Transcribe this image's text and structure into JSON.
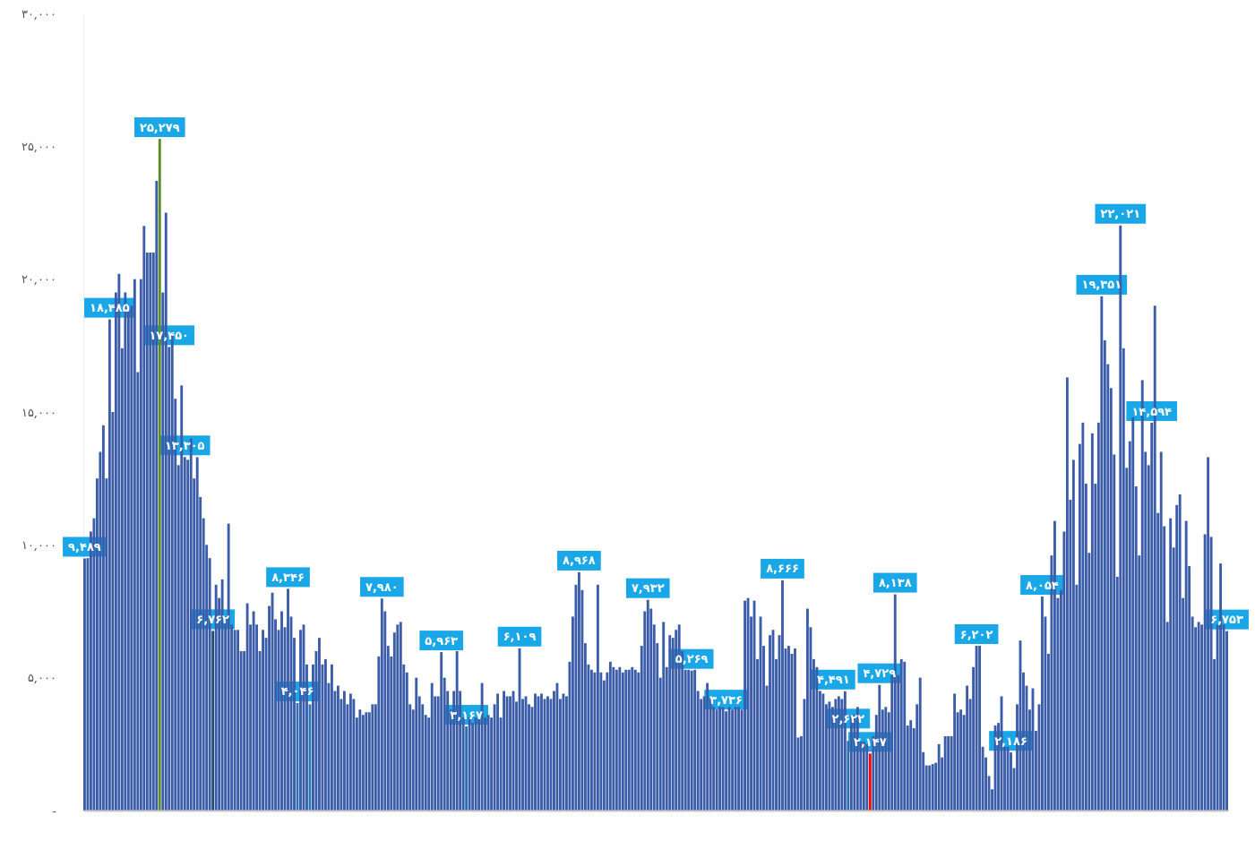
{
  "chart_data": {
    "type": "bar",
    "categories": [
      null,
      null,
      null,
      null,
      null,
      null,
      null,
      null,
      null,
      null,
      null,
      null,
      null,
      null,
      null,
      null,
      null,
      null,
      null,
      null,
      null,
      null,
      null,
      null,
      null,
      null,
      null,
      null,
      null,
      null,
      null,
      null,
      null,
      null,
      null,
      null,
      null,
      null,
      null,
      null,
      null,
      null,
      null,
      null,
      null,
      null,
      null,
      null,
      null,
      null,
      null,
      null,
      null,
      null,
      null,
      null,
      null,
      null,
      null,
      null,
      null,
      null,
      null,
      null,
      null,
      null,
      null,
      null,
      null,
      null,
      null,
      null,
      null,
      null,
      null,
      null,
      null,
      null,
      null,
      null,
      null,
      null,
      null,
      null,
      null,
      null,
      null,
      null,
      null,
      null,
      null,
      null,
      null,
      null,
      null,
      null,
      null,
      null,
      null,
      null,
      null,
      null,
      null,
      null,
      null,
      null,
      null,
      null,
      null,
      null,
      null,
      null,
      null,
      null,
      null,
      null,
      null,
      null,
      null,
      null,
      null,
      null,
      null,
      null,
      null,
      null,
      null,
      null,
      null,
      null,
      null,
      null,
      null,
      null,
      null,
      null,
      null,
      null,
      null,
      null,
      null,
      null,
      null,
      null,
      null,
      null,
      null,
      null,
      null,
      null,
      null,
      null,
      null,
      null,
      null,
      null,
      null,
      null,
      null,
      null,
      null,
      null,
      null,
      null,
      null,
      null,
      null,
      null,
      null,
      null,
      null,
      null,
      null,
      null,
      null,
      null,
      null,
      null,
      null,
      null,
      null,
      null,
      null,
      null,
      null,
      null,
      null,
      null,
      null,
      null,
      null,
      null,
      null,
      null,
      null,
      null,
      null,
      null,
      null,
      null,
      null,
      null,
      null,
      null,
      null,
      null,
      null,
      null,
      null,
      null,
      null,
      null,
      null,
      null,
      null,
      null,
      null,
      null,
      null,
      null,
      null,
      null,
      null,
      null,
      null,
      null,
      null,
      null,
      null,
      null,
      null,
      null,
      null,
      null,
      null,
      null,
      null,
      null,
      null,
      null,
      null,
      null,
      null,
      null,
      null,
      null,
      null,
      null,
      null,
      null,
      null,
      null,
      null,
      null,
      null,
      null,
      null,
      null,
      null,
      null,
      null,
      null,
      null,
      null,
      null,
      null,
      null,
      null,
      null,
      null,
      null,
      null,
      null,
      null,
      null,
      null,
      null,
      null,
      null,
      null,
      null,
      null,
      null,
      null,
      null,
      null,
      null,
      null,
      null,
      null,
      null,
      null,
      null,
      null,
      null,
      null,
      null,
      null,
      null,
      null,
      null,
      null,
      null,
      null,
      null,
      null,
      null,
      null,
      null,
      null,
      null,
      null,
      null,
      null,
      null,
      null,
      null,
      null,
      null,
      null,
      null,
      null,
      null,
      null,
      null,
      null,
      null,
      null,
      null,
      null,
      null,
      null,
      null,
      null,
      null,
      null,
      null,
      null,
      null,
      null,
      null,
      null,
      null,
      null,
      null,
      null,
      null,
      null,
      null,
      null,
      null,
      null,
      null,
      null,
      null,
      null,
      null,
      null,
      null,
      null,
      null,
      null,
      null,
      null,
      null,
      null
    ],
    "values": [
      9489,
      9500,
      10500,
      11000,
      12500,
      13500,
      14500,
      12500,
      18485,
      15000,
      19500,
      20200,
      17400,
      19500,
      18900,
      19000,
      20000,
      16500,
      20000,
      22000,
      21000,
      21000,
      21000,
      23700,
      25279,
      19500,
      22500,
      17450,
      18000,
      15500,
      13000,
      16000,
      13305,
      13200,
      14000,
      12500,
      13300,
      11800,
      11000,
      10000,
      9500,
      6762,
      8500,
      8000,
      8700,
      7300,
      10800,
      7000,
      6800,
      6800,
      6000,
      6000,
      7800,
      7000,
      7500,
      7000,
      6000,
      6800,
      6500,
      7700,
      8200,
      7200,
      6800,
      7500,
      6900,
      8346,
      7300,
      6500,
      4046,
      6800,
      7000,
      5500,
      4000,
      5500,
      6000,
      6500,
      5500,
      5700,
      4800,
      5500,
      4500,
      4700,
      4200,
      4500,
      4000,
      4400,
      4200,
      3500,
      3800,
      3600,
      3700,
      3700,
      4000,
      4000,
      5800,
      7980,
      7500,
      6200,
      5800,
      6700,
      7000,
      7100,
      5500,
      5200,
      4000,
      3800,
      5000,
      4300,
      4000,
      3600,
      3500,
      4800,
      4300,
      4300,
      5963,
      5000,
      4500,
      3800,
      4500,
      6000,
      4500,
      3500,
      3167,
      3500,
      3300,
      3500,
      3500,
      4800,
      3500,
      3600,
      3500,
      4000,
      4400,
      3500,
      4500,
      4300,
      4300,
      4500,
      4100,
      6109,
      4200,
      4300,
      4000,
      3900,
      4400,
      4300,
      4400,
      4200,
      4300,
      4200,
      4500,
      4800,
      4200,
      4400,
      4300,
      5600,
      7300,
      8500,
      8968,
      8300,
      6300,
      5500,
      5300,
      5200,
      8500,
      5200,
      4900,
      5200,
      5600,
      5400,
      5300,
      5400,
      5200,
      5300,
      5300,
      5400,
      5300,
      5200,
      6200,
      7500,
      7932,
      7600,
      7000,
      6300,
      5000,
      7100,
      5400,
      6600,
      6500,
      6800,
      7000,
      6000,
      5300,
      5300,
      5269,
      5300,
      4500,
      4200,
      4300,
      4800,
      4200,
      3900,
      3800,
      3900,
      3900,
      3736,
      3900,
      3800,
      3900,
      3900,
      3800,
      7900,
      8000,
      7300,
      7900,
      5700,
      7300,
      6200,
      4700,
      6600,
      6800,
      5700,
      6600,
      8666,
      6100,
      6200,
      5900,
      6100,
      2750,
      2800,
      4200,
      7600,
      6900,
      5700,
      5400,
      4500,
      4400,
      4000,
      4100,
      3900,
      4200,
      4300,
      4200,
      4491,
      2622,
      3600,
      3600,
      3900,
      2600,
      2600,
      2500,
      2147,
      2800,
      3600,
      4729,
      3800,
      3900,
      3700,
      5100,
      8138,
      5100,
      5700,
      5600,
      3200,
      3400,
      3100,
      4000,
      5000,
      2200,
      1700,
      1700,
      1750,
      1800,
      2500,
      2000,
      2800,
      2800,
      2800,
      4400,
      3700,
      3800,
      3600,
      4700,
      4200,
      5400,
      6202,
      6200,
      2400,
      2000,
      1300,
      800,
      3200,
      3300,
      4300,
      2400,
      2400,
      2186,
      1600,
      4000,
      6400,
      5200,
      4700,
      3800,
      4600,
      3000,
      4000,
      8054,
      7300,
      5900,
      9600,
      10900,
      8000,
      8300,
      10500,
      16300,
      11700,
      13200,
      8500,
      13800,
      14600,
      12300,
      9700,
      14200,
      12300,
      14600,
      19351,
      17700,
      16800,
      15900,
      13400,
      8800,
      22021,
      17400,
      12900,
      13900,
      14800,
      12200,
      9600,
      16200,
      13500,
      13000,
      14594,
      19000,
      11200,
      13500,
      10700,
      7100,
      11000,
      9900,
      11500,
      11900,
      8000,
      10900,
      9200,
      7300,
      6900,
      7100,
      7000,
      10400,
      13300,
      10300,
      5700,
      7000,
      9300,
      7000,
      6753
    ],
    "value_labels": [
      "۹,۴۸۹",
      null,
      null,
      null,
      null,
      null,
      null,
      null,
      "۱۸,۴۸۵",
      null,
      null,
      null,
      null,
      null,
      null,
      null,
      null,
      null,
      null,
      null,
      null,
      null,
      null,
      null,
      "۲۵,۲۷۹",
      null,
      null,
      "۱۷,۴۵۰",
      null,
      null,
      null,
      null,
      "۱۳,۳۰۵",
      null,
      null,
      null,
      null,
      null,
      null,
      null,
      null,
      "۶,۷۶۲",
      null,
      null,
      null,
      null,
      null,
      null,
      null,
      null,
      null,
      null,
      null,
      null,
      null,
      null,
      null,
      null,
      null,
      null,
      null,
      null,
      null,
      null,
      null,
      "۸,۳۴۶",
      null,
      null,
      "۴,۰۴۶",
      null,
      null,
      null,
      null,
      null,
      null,
      null,
      null,
      null,
      null,
      null,
      null,
      null,
      null,
      null,
      null,
      null,
      null,
      null,
      null,
      null,
      null,
      null,
      null,
      null,
      null,
      "۷,۹۸۰",
      null,
      null,
      null,
      null,
      null,
      null,
      null,
      null,
      null,
      null,
      null,
      null,
      null,
      null,
      null,
      null,
      null,
      null,
      "۵,۹۶۳",
      null,
      null,
      null,
      null,
      null,
      null,
      null,
      "۳,۱۶۷",
      null,
      null,
      null,
      null,
      null,
      null,
      null,
      null,
      null,
      null,
      null,
      null,
      null,
      null,
      null,
      null,
      "۶,۱۰۹",
      null,
      null,
      null,
      null,
      null,
      null,
      null,
      null,
      null,
      null,
      null,
      null,
      null,
      null,
      null,
      null,
      null,
      null,
      "۸,۹۶۸",
      null,
      null,
      null,
      null,
      null,
      null,
      null,
      null,
      null,
      null,
      null,
      null,
      null,
      null,
      null,
      null,
      null,
      null,
      null,
      null,
      null,
      "۷,۹۳۲",
      null,
      null,
      null,
      null,
      null,
      null,
      null,
      null,
      null,
      null,
      null,
      null,
      null,
      "۵,۲۶۹",
      null,
      null,
      null,
      null,
      null,
      null,
      null,
      null,
      null,
      null,
      "۳,۷۳۶",
      null,
      null,
      null,
      null,
      null,
      null,
      null,
      null,
      null,
      null,
      null,
      null,
      null,
      null,
      null,
      null,
      null,
      "۸,۶۶۶",
      null,
      null,
      null,
      null,
      null,
      null,
      null,
      null,
      null,
      null,
      null,
      null,
      null,
      null,
      null,
      null,
      null,
      null,
      null,
      "۴,۴۹۱",
      "۲,۶۲۲",
      null,
      null,
      null,
      null,
      null,
      null,
      "۲,۱۴۷",
      null,
      null,
      "۴,۷۲۹",
      null,
      null,
      null,
      null,
      "۸,۱۳۸",
      null,
      null,
      null,
      null,
      null,
      null,
      null,
      null,
      null,
      null,
      null,
      null,
      null,
      null,
      null,
      null,
      null,
      null,
      null,
      null,
      null,
      null,
      null,
      null,
      null,
      "۶,۲۰۲",
      null,
      null,
      null,
      null,
      null,
      null,
      null,
      null,
      null,
      null,
      "۲,۱۸۶",
      null,
      null,
      null,
      null,
      null,
      null,
      null,
      null,
      null,
      "۸,۰۵۴",
      null,
      null,
      null,
      null,
      null,
      null,
      null,
      null,
      null,
      null,
      null,
      null,
      null,
      null,
      null,
      null,
      null,
      null,
      "۱۹,۳۵۱",
      null,
      null,
      null,
      null,
      null,
      "۲۲,۰۲۱",
      null,
      null,
      null,
      null,
      null,
      null,
      null,
      null,
      null,
      "۱۴,۵۹۴",
      null,
      null,
      null,
      null,
      null,
      null,
      null,
      null,
      null,
      null,
      null,
      null,
      null,
      null,
      null,
      null,
      null,
      null,
      null,
      null,
      null,
      null,
      null,
      "۶,۷۵۳"
    ],
    "colors": [
      "#3b5ca8",
      "#3b5ca8",
      "#3b5ca8",
      "#3b5ca8",
      "#3b5ca8",
      "#3b5ca8",
      "#3b5ca8",
      "#3b5ca8",
      "#3b5ca8",
      "#3b5ca8",
      "#3b5ca8",
      "#3b5ca8",
      "#3b5ca8",
      "#3b5ca8",
      "#3b5ca8",
      "#3b5ca8",
      "#3b5ca8",
      "#3b5ca8",
      "#3b5ca8",
      "#3b5ca8",
      "#3b5ca8",
      "#3b5ca8",
      "#3b5ca8",
      "#3b5ca8",
      "#5b8c2a",
      "#3b5ca8",
      "#3b5ca8",
      "#3b5ca8",
      "#3b5ca8",
      "#3b5ca8",
      "#3b5ca8",
      "#3b5ca8",
      "#3b5ca8",
      "#3b5ca8",
      "#3b5ca8",
      "#3b5ca8",
      "#3b5ca8",
      "#3b5ca8",
      "#3b5ca8",
      "#3b5ca8",
      "#3b5ca8",
      "#1f4e6e",
      "#3b5ca8",
      "#3b5ca8",
      "#3b5ca8",
      "#3b5ca8",
      "#3b5ca8",
      "#3b5ca8",
      "#3b5ca8",
      "#3b5ca8",
      "#3b5ca8",
      "#3b5ca8",
      "#3b5ca8",
      "#3b5ca8",
      "#3b5ca8",
      "#3b5ca8",
      "#3b5ca8",
      "#3b5ca8",
      "#3b5ca8",
      "#3b5ca8",
      "#3b5ca8",
      "#3b5ca8",
      "#3b5ca8",
      "#3b5ca8",
      "#3b5ca8",
      "#3b5ca8",
      "#3b5ca8",
      "#3b5ca8",
      "#2e75b6",
      "#3b5ca8",
      "#3b5ca8",
      "#3b5ca8",
      "#2e75b6",
      "#3b5ca8",
      "#3b5ca8",
      "#3b5ca8",
      "#3b5ca8",
      "#3b5ca8",
      "#3b5ca8",
      "#3b5ca8",
      "#3b5ca8",
      "#3b5ca8",
      "#3b5ca8",
      "#3b5ca8",
      "#3b5ca8",
      "#3b5ca8",
      "#3b5ca8",
      "#3b5ca8",
      "#3b5ca8",
      "#3b5ca8",
      "#3b5ca8",
      "#3b5ca8",
      "#3b5ca8",
      "#3b5ca8",
      "#3b5ca8",
      "#3b5ca8",
      "#3b5ca8",
      "#3b5ca8",
      "#3b5ca8",
      "#3b5ca8",
      "#3b5ca8",
      "#3b5ca8",
      "#3b5ca8",
      "#3b5ca8",
      "#3b5ca8",
      "#3b5ca8",
      "#3b5ca8",
      "#3b5ca8",
      "#3b5ca8",
      "#3b5ca8",
      "#3b5ca8",
      "#3b5ca8",
      "#3b5ca8",
      "#3b5ca8",
      "#3b5ca8",
      "#3b5ca8",
      "#3b5ca8",
      "#3b5ca8",
      "#3b5ca8",
      "#3b5ca8",
      "#3b5ca8",
      "#3b5ca8",
      "#2a6fb0",
      "#3b5ca8",
      "#3b5ca8",
      "#3b5ca8",
      "#3b5ca8",
      "#3b5ca8",
      "#3b5ca8",
      "#3b5ca8",
      "#3b5ca8",
      "#3b5ca8",
      "#3b5ca8",
      "#3b5ca8",
      "#3b5ca8",
      "#3b5ca8",
      "#3b5ca8",
      "#3b5ca8",
      "#3b5ca8",
      "#3b5ca8",
      "#3b5ca8",
      "#3b5ca8",
      "#3b5ca8",
      "#3b5ca8",
      "#3b5ca8",
      "#3b5ca8",
      "#3b5ca8",
      "#3b5ca8",
      "#3b5ca8",
      "#3b5ca8",
      "#3b5ca8",
      "#3b5ca8",
      "#3b5ca8",
      "#3b5ca8",
      "#3b5ca8",
      "#3b5ca8",
      "#3b5ca8",
      "#3b5ca8",
      "#3b5ca8",
      "#3b5ca8",
      "#3b5ca8",
      "#3b5ca8",
      "#3b5ca8",
      "#3b5ca8",
      "#3b5ca8",
      "#3b5ca8",
      "#3b5ca8",
      "#3b5ca8",
      "#3b5ca8",
      "#3b5ca8",
      "#3b5ca8",
      "#3b5ca8",
      "#3b5ca8",
      "#3b5ca8",
      "#3b5ca8",
      "#3b5ca8",
      "#3b5ca8",
      "#3b5ca8",
      "#3b5ca8",
      "#3b5ca8",
      "#3b5ca8",
      "#3b5ca8",
      "#3b5ca8",
      "#3b5ca8",
      "#3b5ca8",
      "#3b5ca8",
      "#3b5ca8",
      "#3b5ca8",
      "#3b5ca8",
      "#3b5ca8",
      "#3b5ca8",
      "#3b5ca8",
      "#3b5ca8",
      "#3b5ca8",
      "#3b5ca8",
      "#3b5ca8",
      "#3b5ca8",
      "#3b5ca8",
      "#3b5ca8",
      "#3b5ca8",
      "#3b5ca8",
      "#3b5ca8",
      "#3b5ca8",
      "#3b5ca8",
      "#3b5ca8",
      "#3b5ca8",
      "#3b5ca8",
      "#3b5ca8",
      "#3b5ca8",
      "#3b5ca8",
      "#3b5ca8",
      "#3b5ca8",
      "#3b5ca8",
      "#3b5ca8",
      "#3b5ca8",
      "#3b5ca8",
      "#3b5ca8",
      "#3b5ca8",
      "#3b5ca8",
      "#3b5ca8",
      "#3b5ca8",
      "#3b5ca8",
      "#3b5ca8",
      "#3b5ca8",
      "#3b5ca8",
      "#3b5ca8",
      "#3b5ca8",
      "#3b5ca8",
      "#3b5ca8",
      "#3b5ca8",
      "#3b5ca8",
      "#3b5ca8",
      "#3b5ca8",
      "#3b5ca8",
      "#3b5ca8",
      "#3b5ca8",
      "#3b5ca8",
      "#3b5ca8",
      "#3b5ca8",
      "#3b5ca8",
      "#3b5ca8",
      "#3b5ca8",
      "#3b5ca8",
      "#3b5ca8",
      "#2a6fb0",
      "#3b5ca8",
      "#3b5ca8",
      "#3b5ca8",
      "#3b5ca8",
      "#3b5ca8",
      "#3b5ca8",
      "#ff0000",
      "#3b5ca8",
      "#3b5ca8",
      "#3b5ca8",
      "#3b5ca8",
      "#3b5ca8",
      "#3b5ca8",
      "#3b5ca8",
      "#3b5ca8",
      "#3b5ca8",
      "#3b5ca8",
      "#3b5ca8",
      "#3b5ca8",
      "#3b5ca8",
      "#3b5ca8",
      "#3b5ca8",
      "#3b5ca8",
      "#3b5ca8",
      "#3b5ca8",
      "#3b5ca8",
      "#3b5ca8",
      "#3b5ca8",
      "#3b5ca8",
      "#3b5ca8",
      "#3b5ca8",
      "#3b5ca8",
      "#3b5ca8",
      "#3b5ca8",
      "#3b5ca8",
      "#3b5ca8",
      "#3b5ca8",
      "#3b5ca8",
      "#3b5ca8",
      "#3b5ca8",
      "#3b5ca8",
      "#3b5ca8",
      "#3b5ca8",
      "#3b5ca8",
      "#3b5ca8",
      "#3b5ca8",
      "#3b5ca8",
      "#3b5ca8",
      "#3b5ca8",
      "#3b5ca8",
      "#3b5ca8",
      "#3b5ca8",
      "#3b5ca8",
      "#3b5ca8",
      "#3b5ca8",
      "#3b5ca8",
      "#3b5ca8",
      "#3b5ca8",
      "#3b5ca8",
      "#3b5ca8",
      "#3b5ca8",
      "#3b5ca8",
      "#3b5ca8",
      "#3b5ca8",
      "#3b5ca8",
      "#3b5ca8",
      "#3b5ca8",
      "#3b5ca8",
      "#3b5ca8",
      "#3b5ca8",
      "#3b5ca8",
      "#3b5ca8",
      "#3b5ca8",
      "#3b5ca8",
      "#3b5ca8",
      "#3b5ca8",
      "#3b5ca8",
      "#3b5ca8",
      "#3b5ca8",
      "#3b5ca8",
      "#3b5ca8",
      "#3b5ca8",
      "#3b5ca8",
      "#3b5ca8",
      "#3b5ca8",
      "#3b5ca8",
      "#3b5ca8",
      "#3b5ca8",
      "#3b5ca8",
      "#3b5ca8",
      "#3b5ca8",
      "#3b5ca8",
      "#3b5ca8",
      "#3b5ca8",
      "#3b5ca8",
      "#3b5ca8",
      "#3b5ca8",
      "#3b5ca8",
      "#3b5ca8",
      "#3b5ca8",
      "#3b5ca8",
      "#3b5ca8",
      "#3b5ca8",
      "#3b5ca8",
      "#3b5ca8",
      "#3b5ca8",
      "#3b5ca8",
      "#3b5ca8",
      "#3b5ca8",
      "#3b5ca8",
      "#3b5ca8",
      "#3b5ca8",
      "#3b5ca8",
      "#3b5ca8",
      "#3b5ca8",
      "#3b5ca8",
      "#3b5ca8",
      "#3b5ca8",
      "#3b5ca8",
      "#3b5ca8",
      "#3b5ca8"
    ],
    "ylim": [
      0,
      30000
    ],
    "yticks": [
      {
        "value": 0,
        "label": "-"
      },
      {
        "value": 5000,
        "label": "۵,۰۰۰"
      },
      {
        "value": 10000,
        "label": "۱۰,۰۰۰"
      },
      {
        "value": 15000,
        "label": "۱۵,۰۰۰"
      },
      {
        "value": 20000,
        "label": "۲۰,۰۰۰"
      },
      {
        "value": 25000,
        "label": "۲۵,۰۰۰"
      },
      {
        "value": 30000,
        "label": "۳۰,۰۰۰"
      }
    ]
  }
}
